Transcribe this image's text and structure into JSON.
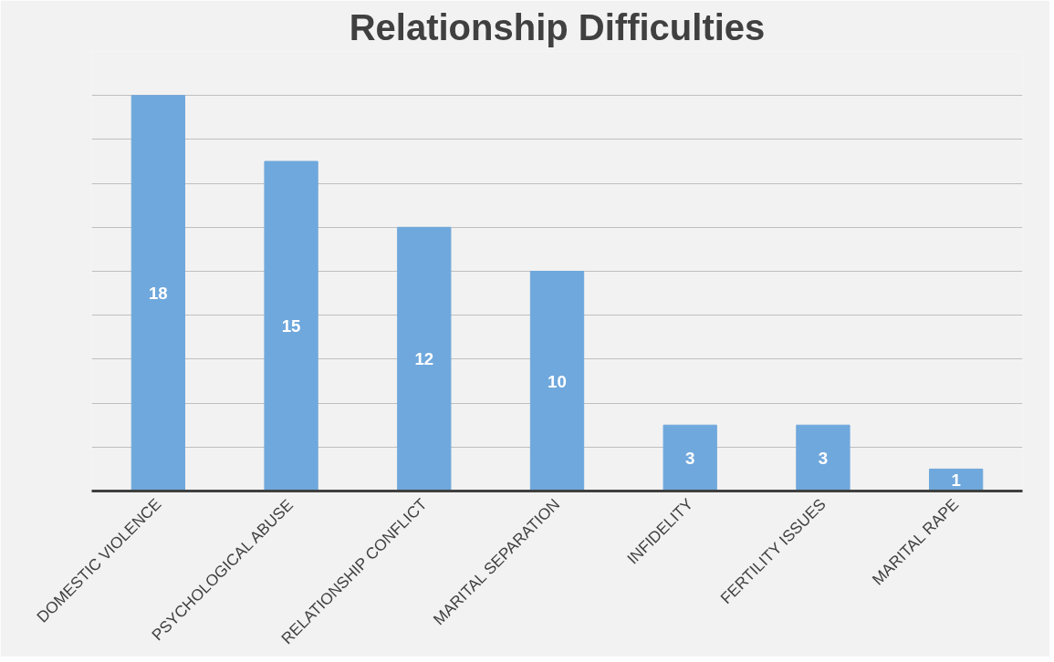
{
  "chart_data": {
    "type": "bar",
    "title": "Relationship Difficulties",
    "categories": [
      "DOMESTIC VIOLENCE",
      "PSYCHOLOGICAL ABUSE",
      "RELATIONSHIP CONFLICT",
      "MARITAL SEPARATION",
      "INFIDELITY",
      "FERTILITY ISSUES",
      "MARITAL RAPE"
    ],
    "values": [
      18,
      15,
      12,
      10,
      3,
      3,
      1
    ],
    "color": "#6fa8dc",
    "ylim": [
      0,
      20
    ],
    "yticks": [
      {
        "value": 0,
        "label": null
      },
      {
        "value": 2,
        "label": null
      },
      {
        "value": 4,
        "label": null
      },
      {
        "value": 6,
        "label": null
      },
      {
        "value": 8,
        "label": null
      },
      {
        "value": 10,
        "label": null
      },
      {
        "value": 12,
        "label": null
      },
      {
        "value": 14,
        "label": null
      },
      {
        "value": 16,
        "label": null
      },
      {
        "value": 18,
        "label": null
      },
      {
        "value": 20,
        "label": null
      }
    ],
    "grid": "y",
    "data_labels": true,
    "tick_labels": "x"
  }
}
